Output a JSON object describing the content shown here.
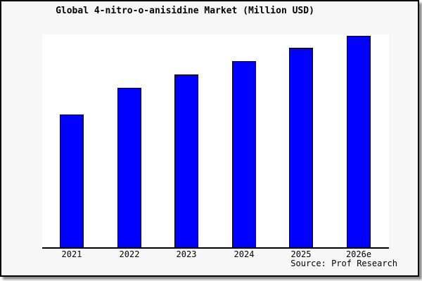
{
  "window": {
    "title": "Global 4-nitro-o-anisidine Market (Million USD)"
  },
  "colors": {
    "bar_fill": "#0000FF",
    "bar_border": "#000000",
    "figure_background": "#F7F7F7",
    "plot_background": "#FFFFFF",
    "axis_line": "#000000",
    "text": "#000000"
  },
  "chart_data": {
    "type": "bar",
    "title": "Global 4-nitro-o-anisidine Market (Million USD)",
    "categories": [
      "2021",
      "2022",
      "2023",
      "2024",
      "2025",
      "2026e"
    ],
    "values": [
      62.8,
      75.4,
      81.7,
      88.0,
      94.4,
      100.0
    ],
    "value_note": "y-axis unlabeled; values are relative index with 2026e = 100",
    "xlabel": "",
    "ylabel": "",
    "ylim": [
      0,
      100.7
    ],
    "grid": false,
    "legend": false,
    "source": "Source: Prof Research"
  }
}
